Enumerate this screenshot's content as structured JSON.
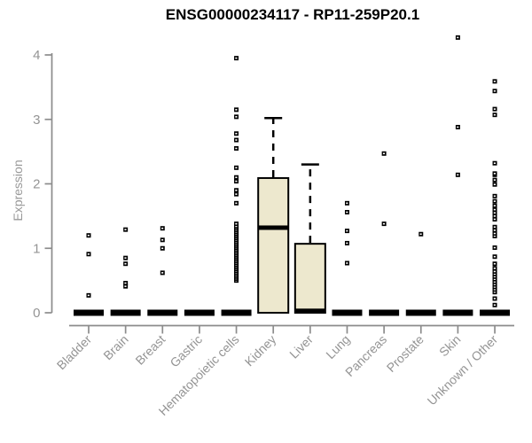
{
  "page": {
    "background": "#ffffff"
  },
  "chart_data": {
    "type": "boxplot",
    "title": "ENSG00000234117 - RP11-259P20.1",
    "xlabel": "",
    "ylabel": "Expression",
    "ylim": [
      0,
      4
    ],
    "yticks": [
      0,
      1,
      2,
      3,
      4
    ],
    "grid": false,
    "legend": false,
    "colors": {
      "box_fill": "#EDE8CE",
      "box_border": "#000000",
      "median": "#000000",
      "whisker": "#000000",
      "outlier": "#000000",
      "axis": "#8C8C8C",
      "tick_label": "#949494",
      "title": "#000000"
    },
    "categories": [
      "Bladder",
      "Brain",
      "Breast",
      "Gastric",
      "Hematopoietic cells",
      "Kidney",
      "Liver",
      "Lung",
      "Pancreas",
      "Prostate",
      "Skin",
      "Unknown / Other"
    ],
    "series": [
      {
        "label": "Bladder",
        "q1": 0,
        "median": 0,
        "q3": 0,
        "whisker_low": 0,
        "whisker_high": 0,
        "outliers": [
          0.27,
          0.91,
          1.2
        ]
      },
      {
        "label": "Brain",
        "q1": 0,
        "median": 0,
        "q3": 0,
        "whisker_low": 0,
        "whisker_high": 0,
        "outliers": [
          0.41,
          0.46,
          0.76,
          0.85,
          1.29
        ]
      },
      {
        "label": "Breast",
        "q1": 0,
        "median": 0,
        "q3": 0,
        "whisker_low": 0,
        "whisker_high": 0,
        "outliers": [
          0.62,
          1.0,
          1.13,
          1.31
        ]
      },
      {
        "label": "Gastric",
        "q1": 0,
        "median": 0,
        "q3": 0,
        "whisker_low": 0,
        "whisker_high": 0,
        "outliers": []
      },
      {
        "label": "Hematopoietic cells",
        "q1": 0,
        "median": 0,
        "q3": 0,
        "whisker_low": 0,
        "whisker_high": 0,
        "outliers": [
          0.5,
          0.53,
          0.56,
          0.59,
          0.62,
          0.65,
          0.68,
          0.71,
          0.74,
          0.77,
          0.8,
          0.83,
          0.86,
          0.89,
          0.92,
          0.95,
          0.98,
          1.01,
          1.04,
          1.07,
          1.1,
          1.13,
          1.16,
          1.19,
          1.22,
          1.25,
          1.28,
          1.31,
          1.34,
          1.38,
          1.7,
          1.84,
          1.9,
          2.04,
          2.1,
          2.25,
          2.55,
          2.68,
          2.78,
          3.04,
          3.15,
          3.95
        ]
      },
      {
        "label": "Kidney",
        "q1": 0,
        "median": 1.32,
        "q3": 2.09,
        "whisker_low": 0,
        "whisker_high": 3.02,
        "outliers": []
      },
      {
        "label": "Liver",
        "q1": 0,
        "median": 0.03,
        "q3": 1.07,
        "whisker_low": 0,
        "whisker_high": 2.3,
        "outliers": []
      },
      {
        "label": "Lung",
        "q1": 0,
        "median": 0,
        "q3": 0,
        "whisker_low": 0,
        "whisker_high": 0,
        "outliers": [
          0.77,
          1.08,
          1.27,
          1.56,
          1.7
        ]
      },
      {
        "label": "Pancreas",
        "q1": 0,
        "median": 0,
        "q3": 0,
        "whisker_low": 0,
        "whisker_high": 0,
        "outliers": [
          1.38,
          2.47
        ]
      },
      {
        "label": "Prostate",
        "q1": 0,
        "median": 0,
        "q3": 0,
        "whisker_low": 0,
        "whisker_high": 0,
        "outliers": [
          1.22
        ]
      },
      {
        "label": "Skin",
        "q1": 0,
        "median": 0,
        "q3": 0,
        "whisker_low": 0,
        "whisker_high": 0,
        "outliers": [
          2.14,
          2.88,
          4.27
        ]
      },
      {
        "label": "Unknown / Other",
        "q1": 0,
        "median": 0,
        "q3": 0,
        "whisker_low": 0,
        "whisker_high": 0,
        "outliers": [
          0.12,
          0.22,
          0.32,
          0.36,
          0.4,
          0.44,
          0.48,
          0.52,
          0.56,
          0.6,
          0.64,
          0.69,
          0.76,
          0.87,
          1.01,
          1.19,
          1.23,
          1.28,
          1.33,
          1.45,
          1.5,
          1.55,
          1.6,
          1.66,
          1.73,
          1.81,
          1.99,
          2.06,
          2.14,
          2.16,
          2.32,
          3.07,
          3.16,
          3.44,
          3.59
        ]
      }
    ]
  }
}
